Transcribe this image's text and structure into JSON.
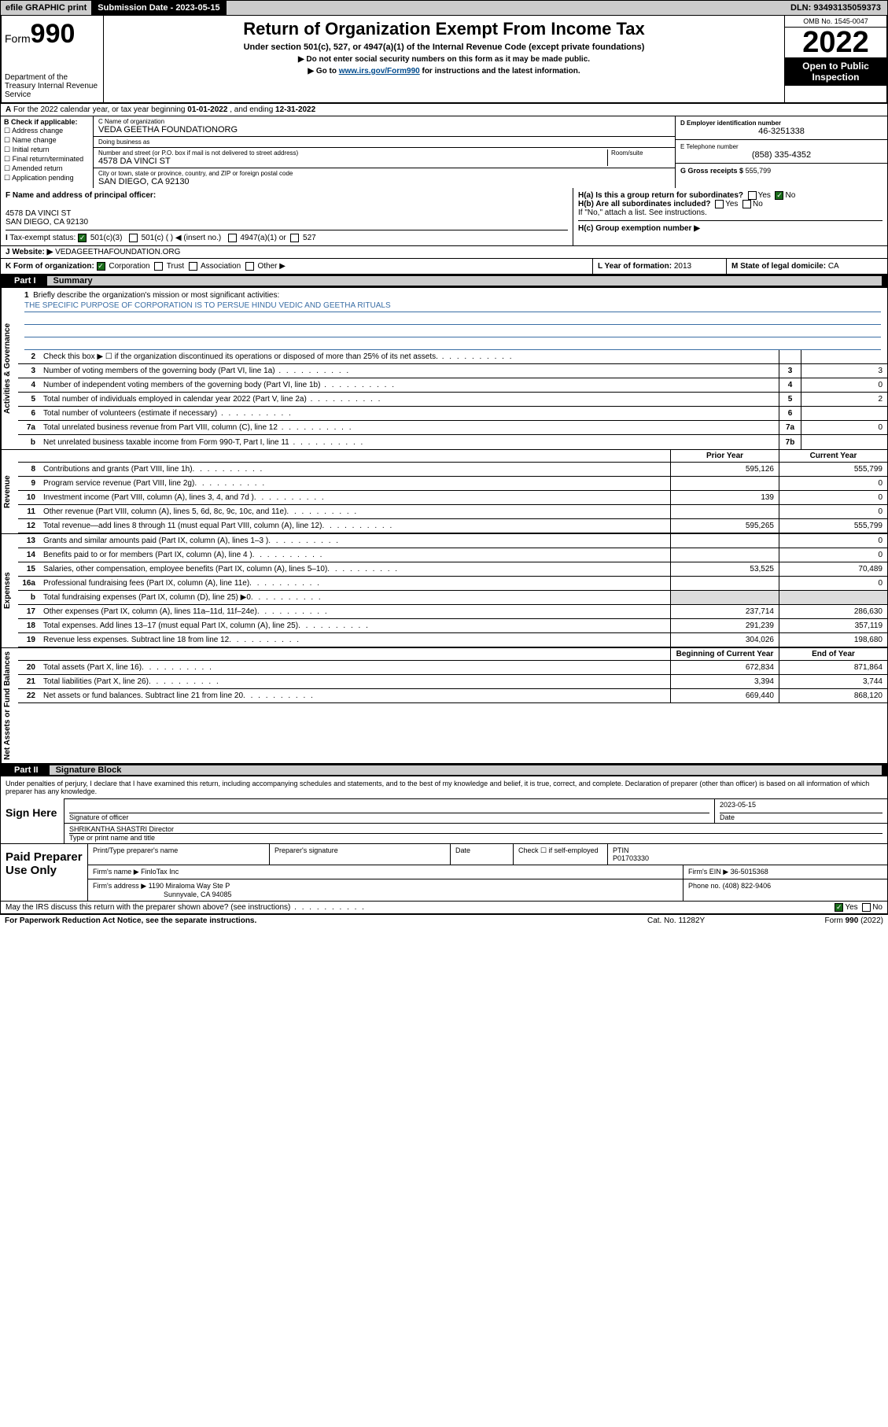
{
  "topbar": {
    "efile": "efile GRAPHIC print",
    "submission": "Submission Date - 2023-05-15",
    "dln": "DLN: 93493135059373"
  },
  "header": {
    "form_label": "Form",
    "form_num": "990",
    "title": "Return of Organization Exempt From Income Tax",
    "sub1": "Under section 501(c), 527, or 4947(a)(1) of the Internal Revenue Code (except private foundations)",
    "sub2": "▶ Do not enter social security numbers on this form as it may be made public.",
    "sub3_pre": "▶ Go to ",
    "sub3_link": "www.irs.gov/Form990",
    "sub3_post": " for instructions and the latest information.",
    "dept": "Department of the Treasury Internal Revenue Service",
    "omb": "OMB No. 1545-0047",
    "year": "2022",
    "open": "Open to Public Inspection"
  },
  "rowA": {
    "text_pre": "For the 2022 calendar year, or tax year beginning ",
    "begin": "01-01-2022",
    "mid": " , and ending ",
    "end": "12-31-2022"
  },
  "colB": {
    "label": "B Check if applicable:",
    "items": [
      "Address change",
      "Name change",
      "Initial return",
      "Final return/terminated",
      "Amended return",
      "Application pending"
    ]
  },
  "colC": {
    "name_label": "C Name of organization",
    "name": "VEDA GEETHA FOUNDATIONORG",
    "dba_label": "Doing business as",
    "dba": "",
    "street_label": "Number and street (or P.O. box if mail is not delivered to street address)",
    "room_label": "Room/suite",
    "street": "4578 DA VINCI ST",
    "city_label": "City or town, state or province, country, and ZIP or foreign postal code",
    "city": "SAN DIEGO, CA  92130"
  },
  "colD": {
    "ein_label": "D Employer identification number",
    "ein": "46-3251338",
    "tel_label": "E Telephone number",
    "tel": "(858) 335-4352",
    "gross_label": "G Gross receipts $",
    "gross": "555,799"
  },
  "rowF": {
    "label": "F Name and address of principal officer:",
    "addr1": "4578 DA VINCI ST",
    "addr2": "SAN DIEGO, CA  92130",
    "ha": "H(a)  Is this a group return for subordinates?",
    "ha_yes": "Yes",
    "ha_no": "No",
    "hb": "H(b)  Are all subordinates included?",
    "hb_yes": "Yes",
    "hb_no": "No",
    "hb_note": "If \"No,\" attach a list. See instructions.",
    "hc": "H(c)  Group exemption number ▶"
  },
  "rowI": {
    "label": "Tax-exempt status:",
    "opts": [
      "501(c)(3)",
      "501(c) (  ) ◀ (insert no.)",
      "4947(a)(1) or",
      "527"
    ]
  },
  "rowJ": {
    "label": "Website: ▶",
    "val": "VEDAGEETHAFOUNDATION.ORG"
  },
  "rowK": {
    "label": "K Form of organization:",
    "opts": [
      "Corporation",
      "Trust",
      "Association",
      "Other ▶"
    ],
    "l_label": "L Year of formation:",
    "l_val": "2013",
    "m_label": "M State of legal domicile:",
    "m_val": "CA"
  },
  "part1": {
    "num": "Part I",
    "title": "Summary"
  },
  "mission": {
    "num": "1",
    "label": "Briefly describe the organization's mission or most significant activities:",
    "text": "THE SPECIFIC PURPOSE OF CORPORATION IS TO PERSUE HINDU VEDIC AND GEETHA RITUALS"
  },
  "gov_lines": [
    {
      "num": "2",
      "txt": "Check this box ▶ ☐  if the organization discontinued its operations or disposed of more than 25% of its net assets.",
      "box": "",
      "amt": ""
    },
    {
      "num": "3",
      "txt": "Number of voting members of the governing body (Part VI, line 1a)",
      "box": "3",
      "amt": "3"
    },
    {
      "num": "4",
      "txt": "Number of independent voting members of the governing body (Part VI, line 1b)",
      "box": "4",
      "amt": "0"
    },
    {
      "num": "5",
      "txt": "Total number of individuals employed in calendar year 2022 (Part V, line 2a)",
      "box": "5",
      "amt": "2"
    },
    {
      "num": "6",
      "txt": "Total number of volunteers (estimate if necessary)",
      "box": "6",
      "amt": ""
    },
    {
      "num": "7a",
      "txt": "Total unrelated business revenue from Part VIII, column (C), line 12",
      "box": "7a",
      "amt": "0"
    },
    {
      "num": "b",
      "txt": "Net unrelated business taxable income from Form 990-T, Part I, line 11",
      "box": "7b",
      "amt": ""
    }
  ],
  "twocol": {
    "spacer": "",
    "prior": "Prior Year",
    "current": "Current Year",
    "begin": "Beginning of Current Year",
    "end": "End of Year"
  },
  "revenue": [
    {
      "num": "8",
      "txt": "Contributions and grants (Part VIII, line 1h)",
      "c1": "595,126",
      "c2": "555,799"
    },
    {
      "num": "9",
      "txt": "Program service revenue (Part VIII, line 2g)",
      "c1": "",
      "c2": "0"
    },
    {
      "num": "10",
      "txt": "Investment income (Part VIII, column (A), lines 3, 4, and 7d )",
      "c1": "139",
      "c2": "0"
    },
    {
      "num": "11",
      "txt": "Other revenue (Part VIII, column (A), lines 5, 6d, 8c, 9c, 10c, and 11e)",
      "c1": "",
      "c2": "0"
    },
    {
      "num": "12",
      "txt": "Total revenue—add lines 8 through 11 (must equal Part VIII, column (A), line 12)",
      "c1": "595,265",
      "c2": "555,799"
    }
  ],
  "expenses": [
    {
      "num": "13",
      "txt": "Grants and similar amounts paid (Part IX, column (A), lines 1–3 )",
      "c1": "",
      "c2": "0"
    },
    {
      "num": "14",
      "txt": "Benefits paid to or for members (Part IX, column (A), line 4 )",
      "c1": "",
      "c2": "0"
    },
    {
      "num": "15",
      "txt": "Salaries, other compensation, employee benefits (Part IX, column (A), lines 5–10)",
      "c1": "53,525",
      "c2": "70,489"
    },
    {
      "num": "16a",
      "txt": "Professional fundraising fees (Part IX, column (A), line 11e)",
      "c1": "",
      "c2": "0"
    },
    {
      "num": "b",
      "txt": "Total fundraising expenses (Part IX, column (D), line 25) ▶0",
      "c1": "shade",
      "c2": "shade"
    },
    {
      "num": "17",
      "txt": "Other expenses (Part IX, column (A), lines 11a–11d, 11f–24e)",
      "c1": "237,714",
      "c2": "286,630"
    },
    {
      "num": "18",
      "txt": "Total expenses. Add lines 13–17 (must equal Part IX, column (A), line 25)",
      "c1": "291,239",
      "c2": "357,119"
    },
    {
      "num": "19",
      "txt": "Revenue less expenses. Subtract line 18 from line 12",
      "c1": "304,026",
      "c2": "198,680"
    }
  ],
  "netassets": [
    {
      "num": "20",
      "txt": "Total assets (Part X, line 16)",
      "c1": "672,834",
      "c2": "871,864"
    },
    {
      "num": "21",
      "txt": "Total liabilities (Part X, line 26)",
      "c1": "3,394",
      "c2": "3,744"
    },
    {
      "num": "22",
      "txt": "Net assets or fund balances. Subtract line 21 from line 20",
      "c1": "669,440",
      "c2": "868,120"
    }
  ],
  "vtabs": {
    "gov": "Activities & Governance",
    "rev": "Revenue",
    "exp": "Expenses",
    "net": "Net Assets or Fund Balances"
  },
  "part2": {
    "num": "Part II",
    "title": "Signature Block"
  },
  "sig": {
    "decl": "Under penalties of perjury, I declare that I have examined this return, including accompanying schedules and statements, and to the best of my knowledge and belief, it is true, correct, and complete. Declaration of preparer (other than officer) is based on all information of which preparer has any knowledge.",
    "sign_here": "Sign Here",
    "sig_label": "Signature of officer",
    "date_label": "Date",
    "date": "2023-05-15",
    "name": "SHRIKANTHA SHASTRI  Director",
    "name_label": "Type or print name and title"
  },
  "prep": {
    "title": "Paid Preparer Use Only",
    "h1": "Print/Type preparer's name",
    "h2": "Preparer's signature",
    "h3": "Date",
    "h4_pre": "Check ☐ if self-employed",
    "h5": "PTIN",
    "ptin": "P01703330",
    "firm_label": "Firm's name    ▶",
    "firm": "FinloTax Inc",
    "ein_label": "Firm's EIN ▶",
    "ein": "36-5015368",
    "addr_label": "Firm's address ▶",
    "addr1": "1190 Miraloma Way Ste P",
    "addr2": "Sunnyvale, CA  94085",
    "phone_label": "Phone no.",
    "phone": "(408) 822-9406"
  },
  "may": {
    "txt": "May the IRS discuss this return with the preparer shown above? (see instructions)",
    "yes": "Yes",
    "no": "No"
  },
  "footer": {
    "f1": "For Paperwork Reduction Act Notice, see the separate instructions.",
    "f2": "Cat. No. 11282Y",
    "f3": "Form 990 (2022)"
  }
}
